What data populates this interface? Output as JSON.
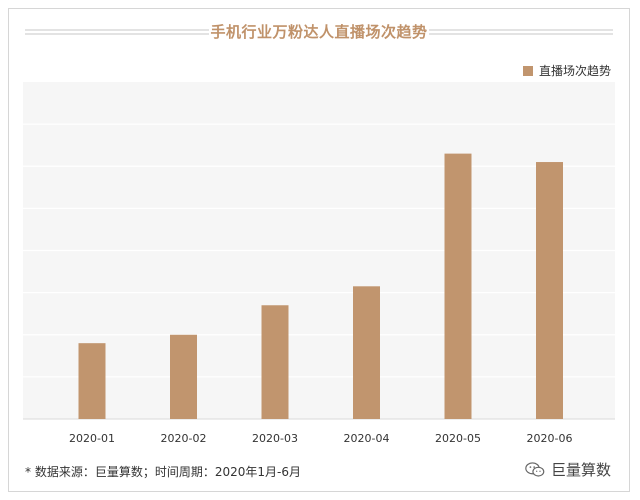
{
  "header": {
    "title": "手机行业万粉达人直播场次趋势"
  },
  "footer": {
    "note": "* 数据来源：巨量算数；时间周期：2020年1月-6月",
    "brand": "巨量算数",
    "brand_icon": "wechat-icon"
  },
  "colors": {
    "bar": "#c1956e",
    "title": "#c0926a",
    "plot_background": "#f6f6f6",
    "grid": "#ffffff"
  },
  "chart_data": {
    "type": "bar",
    "title": "手机行业万粉达人直播场次趋势",
    "xlabel": "",
    "ylabel": "",
    "categories": [
      "2020-01",
      "2020-02",
      "2020-03",
      "2020-04",
      "2020-05",
      "2020-06"
    ],
    "series": [
      {
        "name": "直播场次趋势",
        "values": [
          18,
          20,
          27,
          31.5,
          63,
          61
        ]
      }
    ],
    "ylim": [
      0,
      80
    ],
    "grid": true,
    "legend_position": "top-right"
  }
}
